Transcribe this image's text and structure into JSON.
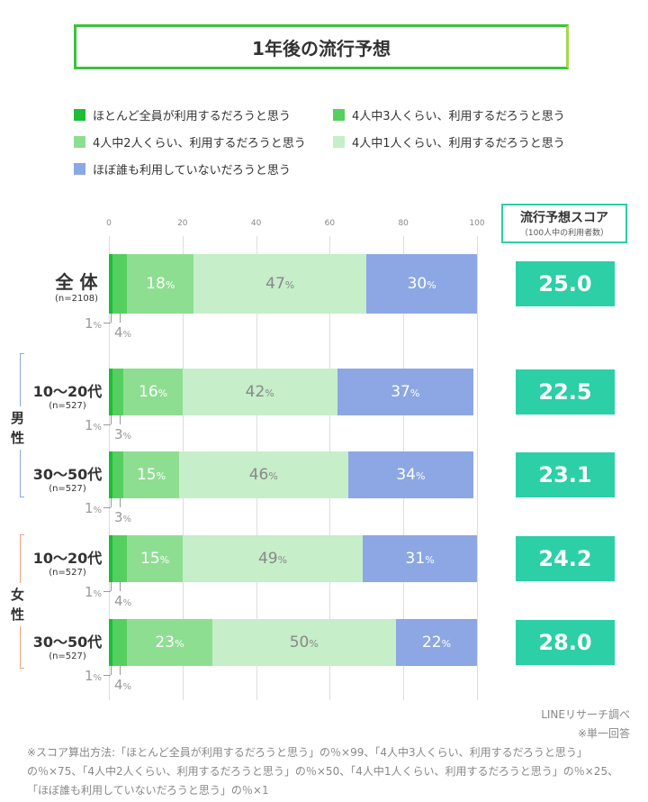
{
  "title": "1年後の流行予想",
  "chart_data": {
    "type": "bar",
    "stacked": true,
    "orientation": "horizontal",
    "xlim": [
      0,
      100
    ],
    "xticks": [
      0,
      20,
      40,
      60,
      80,
      100
    ],
    "grid": true,
    "legend_position": "top",
    "series": [
      {
        "name": "ほとんど全員が利用するだろうと思う",
        "color": "#1dbd38",
        "values": [
          1,
          1,
          1,
          1,
          1
        ]
      },
      {
        "name": "4人中3人くらい、利用するだろうと思う",
        "color": "#55cf5f",
        "values": [
          4,
          3,
          3,
          4,
          4
        ]
      },
      {
        "name": "4人中2人くらい、利用するだろうと思う",
        "color": "#8ede92",
        "values": [
          18,
          16,
          15,
          15,
          23
        ]
      },
      {
        "name": "4人中1人くらい、利用するだろうと思う",
        "color": "#c6eec9",
        "values": [
          47,
          42,
          46,
          49,
          50
        ]
      },
      {
        "name": "ほぼ誰も利用していないだろうと思う",
        "color": "#8ca7e3",
        "values": [
          30,
          37,
          34,
          31,
          22
        ]
      }
    ],
    "categories": [
      {
        "label": "全 体",
        "n": "(n=2108)"
      },
      {
        "label": "10〜20代",
        "n": "(n=527)",
        "group": "男性"
      },
      {
        "label": "30〜50代",
        "n": "(n=527)",
        "group": "男性"
      },
      {
        "label": "10〜20代",
        "n": "(n=527)",
        "group": "女性"
      },
      {
        "label": "30〜50代",
        "n": "(n=527)",
        "group": "女性"
      }
    ],
    "groups": [
      {
        "label": "男\n性",
        "color": "#8ca7e3"
      },
      {
        "label": "女\n性",
        "color": "#f0a07a"
      }
    ],
    "score_header": "流行予想スコア",
    "score_sub": "（100人中の利用者数）",
    "scores": [
      "25.0",
      "22.5",
      "23.1",
      "24.2",
      "28.0"
    ],
    "score_color": "#2ccfa6",
    "pct_unit": "%"
  },
  "footer": {
    "source": "LINEリサーチ調べ",
    "note1": "※単一回答",
    "note2": "※スコア算出方法:「ほとんど全員が利用するだろうと思う」の％×99、「4人中3人くらい、利用するだろうと思う」の％×75、「4人中2人くらい、利用するだろうと思う」の％×50、「4人中1人くらい、利用するだろうと思う」の％×25、「ほぼ誰も利用していないだろうと思う」の％×1"
  }
}
